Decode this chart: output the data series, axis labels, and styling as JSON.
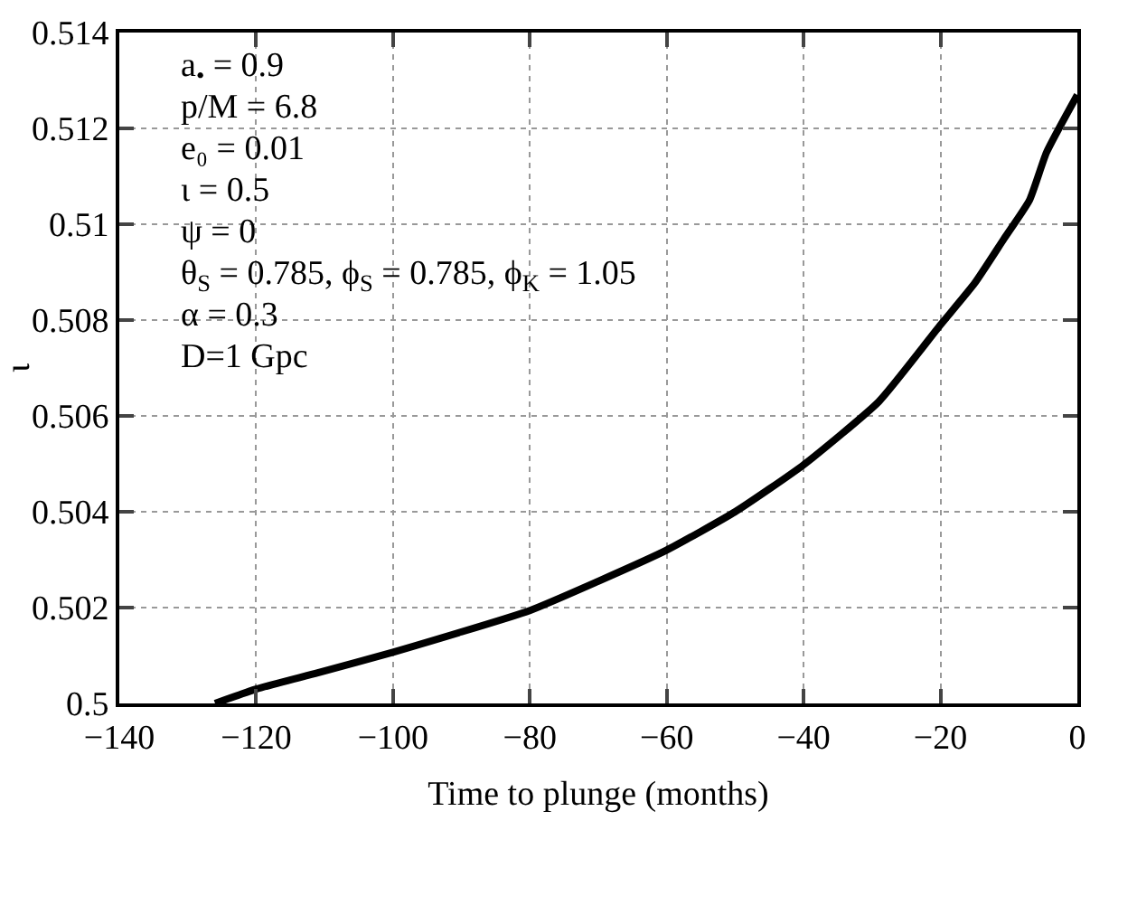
{
  "chart_data": {
    "type": "line",
    "xlabel": "Time to plunge (months)",
    "ylabel": "ι",
    "x": [
      -126,
      -120,
      -111,
      -100,
      -80,
      -70,
      -60,
      -50,
      -40,
      -29,
      -20,
      -15,
      -10.7,
      -7,
      -4.5,
      0
    ],
    "series": [
      {
        "color": "#000000",
        "values": [
          0.5,
          0.5003,
          0.50064,
          0.50107,
          0.50194,
          0.50255,
          0.5032,
          0.504,
          0.50498,
          0.5063,
          0.5079,
          0.50877,
          0.5097,
          0.5105,
          0.5115,
          0.5127
        ]
      }
    ],
    "xlim": [
      -140,
      0
    ],
    "ylim": [
      0.5,
      0.514
    ],
    "xticks": [
      {
        "value": -140,
        "label": "−140"
      },
      {
        "value": -120,
        "label": "−120"
      },
      {
        "value": -100,
        "label": "−100"
      },
      {
        "value": -80,
        "label": "−80"
      },
      {
        "value": -60,
        "label": "−60"
      },
      {
        "value": -40,
        "label": "−40"
      },
      {
        "value": -20,
        "label": "−20"
      },
      0
    ],
    "yticks": [
      0.5,
      0.502,
      0.504,
      0.506,
      0.508,
      0.51,
      0.512,
      0.514
    ],
    "grid": true,
    "marker": "none",
    "line_style": "solid",
    "annotations": [
      "a$_{•}$ = 0.9",
      "p/M = 6.8",
      "e₀ = 0.01",
      "ι = 0.5",
      "ψ = 0",
      "θ$_{S}$ = 0.785, ϕ$_{S}$ = 0.785, ϕ$_{K}$ = 1.05",
      "α = 0.3",
      "D=1 Gpc"
    ]
  }
}
